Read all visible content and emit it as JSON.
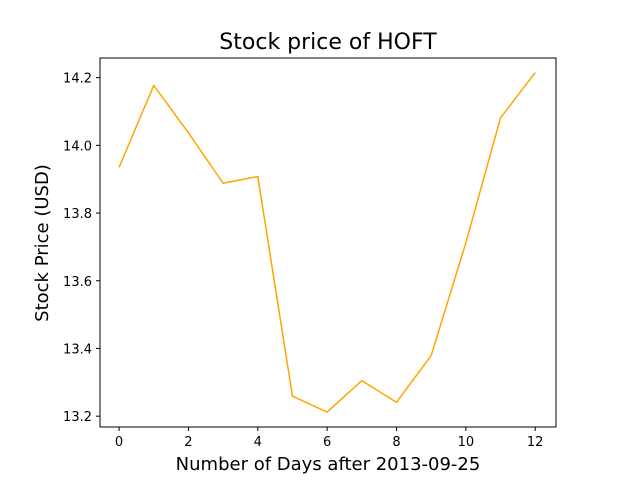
{
  "chart_data": {
    "type": "line",
    "title": "Stock price of HOFT",
    "xlabel": "Number of Days after 2013-09-25",
    "ylabel": "Stock Price (USD)",
    "x": [
      0,
      1,
      2,
      3,
      4,
      5,
      6,
      7,
      8,
      9,
      10,
      11,
      12
    ],
    "series": [
      {
        "values": [
          13.935,
          14.177,
          14.037,
          13.888,
          13.908,
          13.259,
          13.212,
          13.305,
          13.241,
          13.379,
          13.712,
          14.081,
          14.215
        ],
        "color": "#ffa500"
      }
    ],
    "xlim": [
      -0.55,
      12.6
    ],
    "ylim": [
      13.168,
      14.258
    ],
    "xticks": [
      0,
      2,
      4,
      6,
      8,
      10,
      12
    ],
    "xtick_labels": [
      "0",
      "2",
      "4",
      "6",
      "8",
      "10",
      "12"
    ],
    "yticks": [
      13.2,
      13.4,
      13.6,
      13.8,
      14.0,
      14.2
    ],
    "ytick_labels": [
      "13.2",
      "13.4",
      "13.6",
      "13.8",
      "14.0",
      "14.2"
    ],
    "grid": false,
    "legend": "none"
  }
}
